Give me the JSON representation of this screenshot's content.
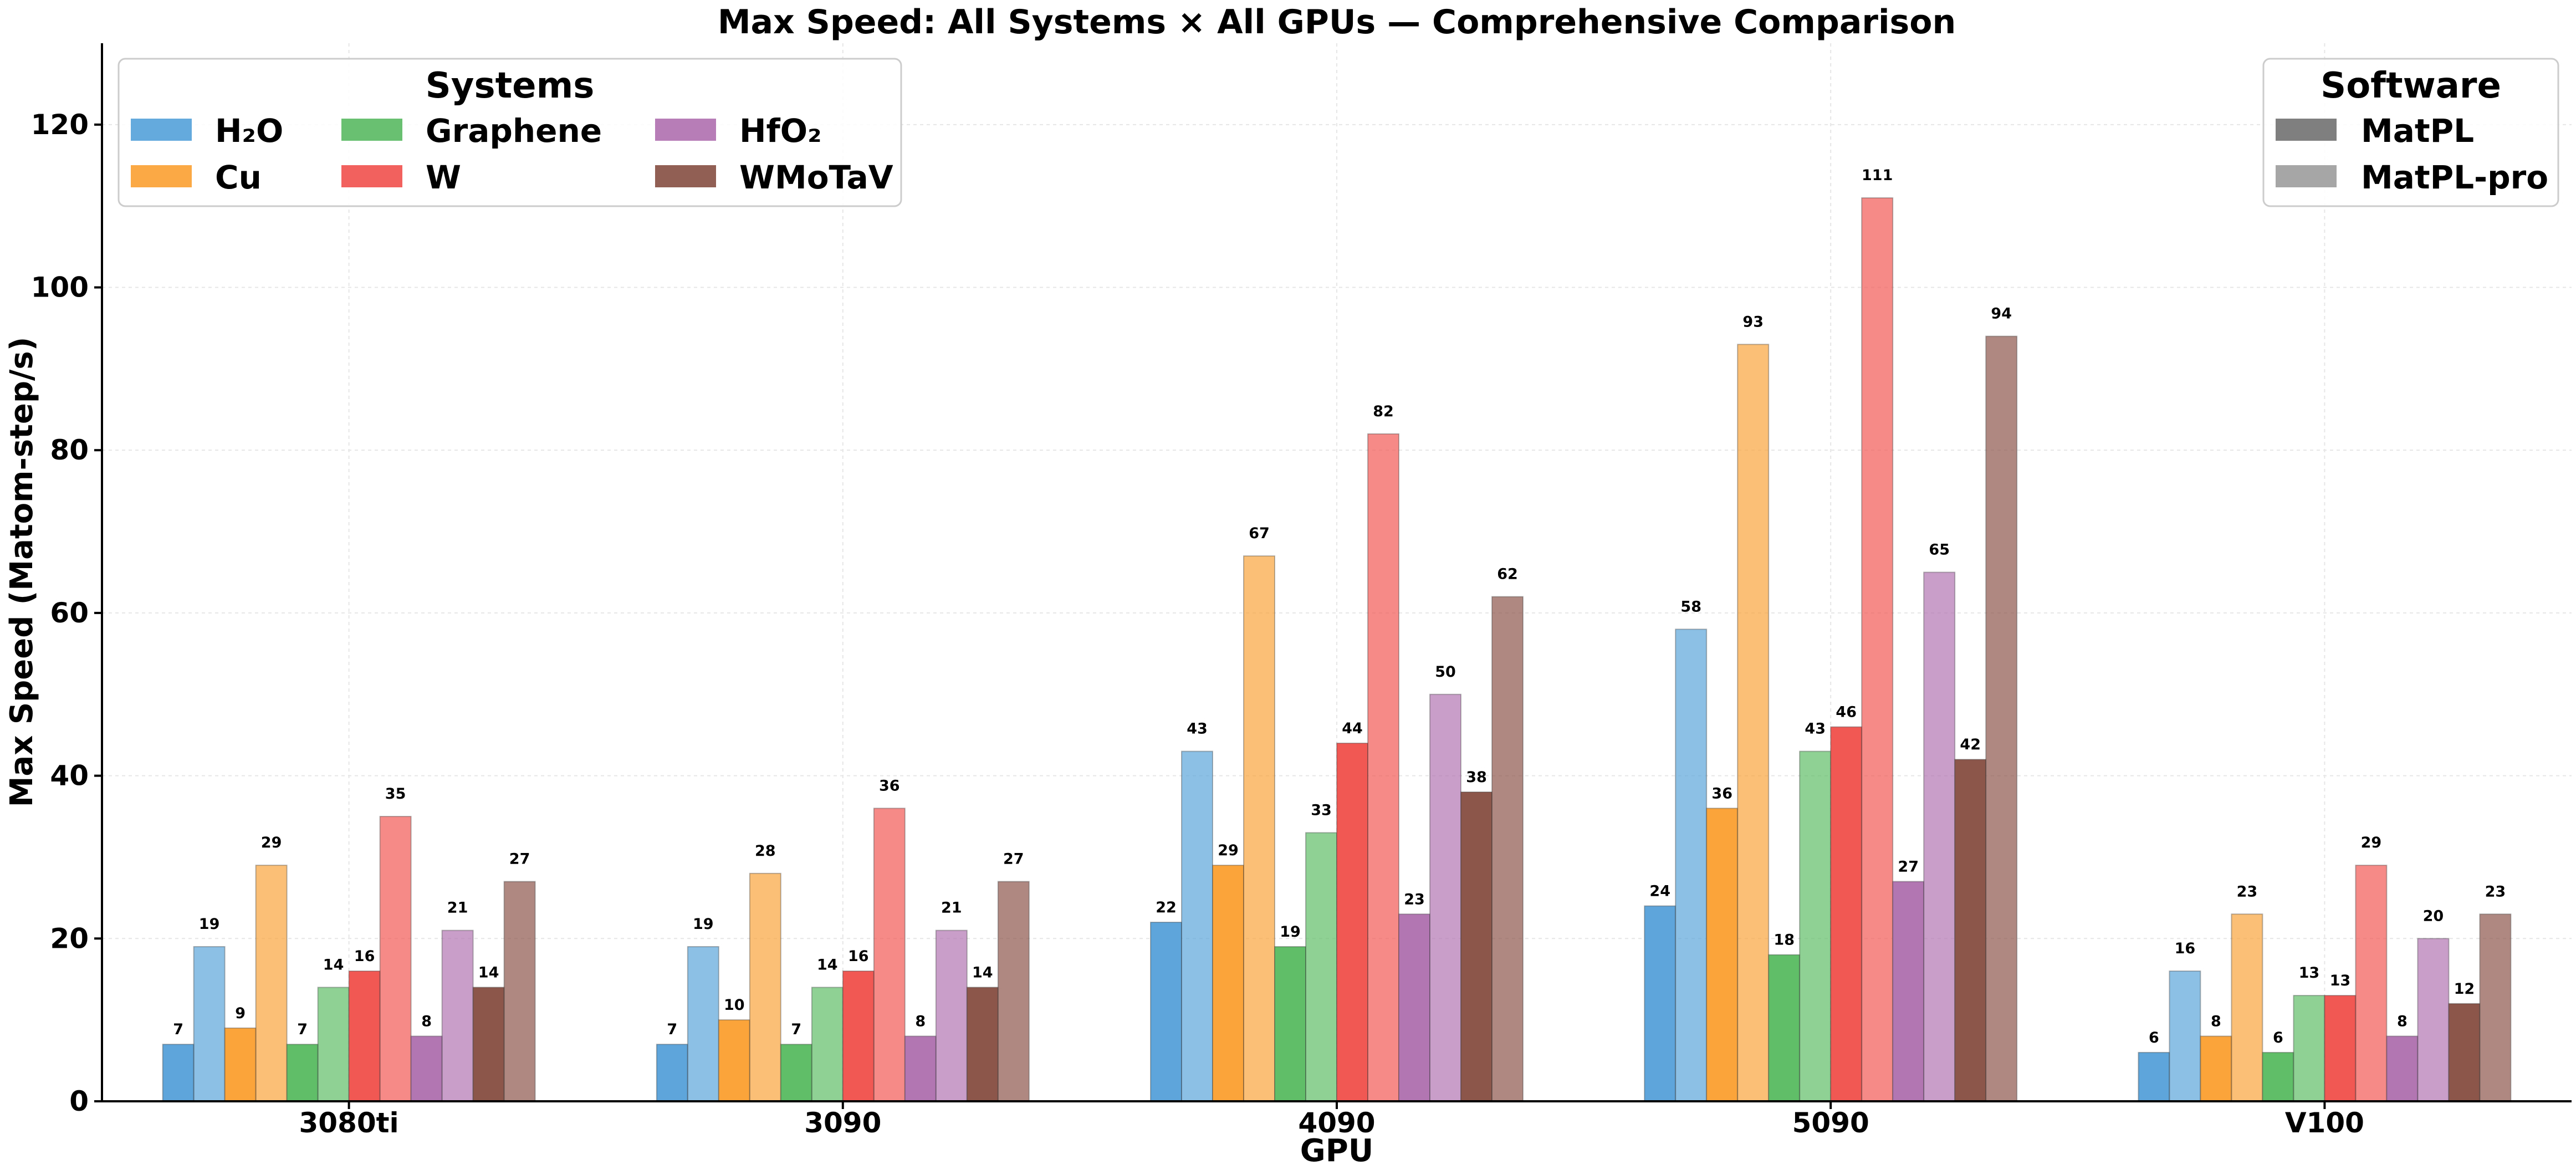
{
  "chart_data": {
    "type": "bar",
    "title": "Max Speed: All Systems × All GPUs — Comprehensive Comparison",
    "xlabel": "GPU",
    "ylabel": "Max Speed (Matom-step/s)",
    "categories": [
      "3080ti",
      "3090",
      "4090",
      "5090",
      "V100"
    ],
    "ylim": [
      0,
      130
    ],
    "yticks": [
      0,
      20,
      40,
      60,
      80,
      100,
      120
    ],
    "grid": true,
    "systems_legend": {
      "title": "Systems",
      "placement": "top-left",
      "entries": [
        {
          "name": "H₂O",
          "color": "#5da5da"
        },
        {
          "name": "Cu",
          "color": "#faa43a"
        },
        {
          "name": "Graphene",
          "color": "#60bd68"
        },
        {
          "name": "W",
          "color": "#f15854"
        },
        {
          "name": "HfO₂",
          "color": "#b276b2"
        },
        {
          "name": "WMoTaV",
          "color": "#8c564b"
        }
      ]
    },
    "software_legend": {
      "title": "Software",
      "placement": "top-right",
      "entries": [
        {
          "name": "MatPL",
          "color": "#7f7f7f"
        },
        {
          "name": "MatPL-pro",
          "color": "#a6a6a6"
        }
      ]
    },
    "series": [
      {
        "system": "H₂O",
        "software": "MatPL",
        "color": "#5da5da",
        "alpha": 1.0,
        "values": [
          7,
          7,
          22,
          24,
          6
        ],
        "labels": [
          "7",
          "7",
          "22",
          "24",
          "6"
        ]
      },
      {
        "system": "H₂O",
        "software": "MatPL-pro",
        "color": "#5da5da",
        "alpha": 0.7,
        "values": [
          19,
          19,
          43,
          58,
          16
        ],
        "labels": [
          "19",
          "19",
          "43",
          "58",
          "16"
        ]
      },
      {
        "system": "Cu",
        "software": "MatPL",
        "color": "#faa43a",
        "alpha": 1.0,
        "values": [
          9,
          10,
          29,
          36,
          8
        ],
        "labels": [
          "9",
          "10",
          "29",
          "36",
          "8"
        ]
      },
      {
        "system": "Cu",
        "software": "MatPL-pro",
        "color": "#faa43a",
        "alpha": 0.7,
        "values": [
          29,
          28,
          67,
          93,
          23
        ],
        "labels": [
          "29",
          "28",
          "67",
          "93",
          "23"
        ]
      },
      {
        "system": "Graphene",
        "software": "MatPL",
        "color": "#60bd68",
        "alpha": 1.0,
        "values": [
          7,
          7,
          19,
          18,
          6
        ],
        "labels": [
          "7",
          "7",
          "19",
          "18",
          "6"
        ]
      },
      {
        "system": "Graphene",
        "software": "MatPL-pro",
        "color": "#60bd68",
        "alpha": 0.7,
        "values": [
          14,
          14,
          33,
          43,
          13
        ],
        "labels": [
          "14",
          "14",
          "33",
          "43",
          "13"
        ]
      },
      {
        "system": "W",
        "software": "MatPL",
        "color": "#f15854",
        "alpha": 1.0,
        "values": [
          16,
          16,
          44,
          46,
          13
        ],
        "labels": [
          "16",
          "16",
          "44",
          "46",
          "13"
        ]
      },
      {
        "system": "W",
        "software": "MatPL-pro",
        "color": "#f15854",
        "alpha": 0.7,
        "values": [
          35,
          36,
          82,
          111,
          29
        ],
        "labels": [
          "35",
          "36",
          "82",
          "111",
          "29"
        ]
      },
      {
        "system": "HfO₂",
        "software": "MatPL",
        "color": "#b276b2",
        "alpha": 1.0,
        "values": [
          8,
          8,
          23,
          27,
          8
        ],
        "labels": [
          "8",
          "8",
          "23",
          "27",
          "8"
        ]
      },
      {
        "system": "HfO₂",
        "software": "MatPL-pro",
        "color": "#b276b2",
        "alpha": 0.7,
        "values": [
          21,
          21,
          50,
          65,
          20
        ],
        "labels": [
          "21",
          "21",
          "50",
          "65",
          "20"
        ]
      },
      {
        "system": "WMoTaV",
        "software": "MatPL",
        "color": "#8c564b",
        "alpha": 1.0,
        "values": [
          14,
          14,
          38,
          42,
          12
        ],
        "labels": [
          "14",
          "14",
          "38",
          "42",
          "12"
        ]
      },
      {
        "system": "WMoTaV",
        "software": "MatPL-pro",
        "color": "#8c564b",
        "alpha": 0.7,
        "values": [
          27,
          27,
          62,
          94,
          23
        ],
        "labels": [
          "27",
          "27",
          "62",
          "94",
          "23"
        ]
      }
    ]
  }
}
